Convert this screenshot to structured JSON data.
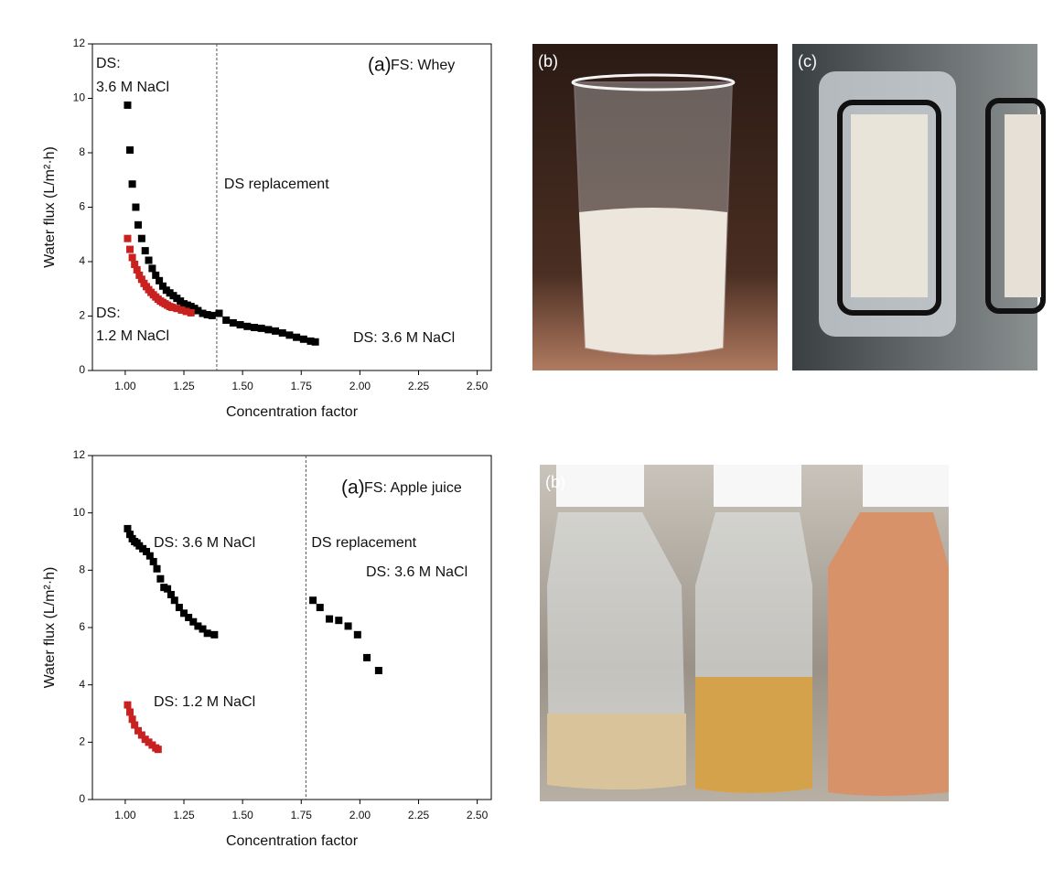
{
  "chart_data": [
    {
      "type": "scatter",
      "panel_label": "(a)",
      "subtitle": "FS: Whey",
      "x_label": "Concentration factor",
      "y_label": "Water flux (L/m²·h)",
      "xlim": [
        0.86,
        2.56
      ],
      "ylim": [
        0,
        12
      ],
      "xticks": [
        {
          "value": 1,
          "label": "1.00"
        },
        {
          "value": 1.25,
          "label": "1.25"
        },
        {
          "value": 1.5,
          "label": "1.50"
        },
        {
          "value": 1.75,
          "label": "1.75"
        },
        {
          "value": 2,
          "label": "2.00"
        },
        {
          "value": 2.25,
          "label": "2.25"
        },
        {
          "value": 2.5,
          "label": "2.50"
        }
      ],
      "yticks": [
        0,
        2,
        4,
        6,
        8,
        10,
        12
      ],
      "vlines": [
        {
          "value": 1.39,
          "label": "DS replacement"
        }
      ],
      "annotations": [
        "DS:",
        "3.6 M NaCl",
        "DS:",
        "1.2 M NaCl",
        "DS: 3.6 M NaCl"
      ],
      "series": [
        {
          "color": "#000000",
          "x": [
            1.01,
            1.02,
            1.03,
            1.045,
            1.055,
            1.07,
            1.085,
            1.1,
            1.115,
            1.13,
            1.145,
            1.16,
            1.175,
            1.19,
            1.205,
            1.22,
            1.235,
            1.25,
            1.265,
            1.28,
            1.295,
            1.31,
            1.33,
            1.35,
            1.37
          ],
          "values": [
            9.75,
            8.1,
            6.85,
            6.0,
            5.35,
            4.85,
            4.4,
            4.05,
            3.75,
            3.5,
            3.3,
            3.1,
            2.95,
            2.85,
            2.75,
            2.65,
            2.55,
            2.45,
            2.4,
            2.35,
            2.28,
            2.2,
            2.1,
            2.05,
            2.02
          ]
        },
        {
          "color": "#c8211f",
          "x": [
            1.01,
            1.02,
            1.03,
            1.04,
            1.05,
            1.06,
            1.07,
            1.08,
            1.09,
            1.1,
            1.11,
            1.12,
            1.13,
            1.14,
            1.15,
            1.16,
            1.17,
            1.18,
            1.19,
            1.2,
            1.22,
            1.24,
            1.26,
            1.28
          ],
          "values": [
            4.85,
            4.45,
            4.15,
            3.9,
            3.7,
            3.5,
            3.35,
            3.2,
            3.08,
            2.97,
            2.87,
            2.78,
            2.7,
            2.62,
            2.55,
            2.5,
            2.45,
            2.4,
            2.35,
            2.32,
            2.28,
            2.22,
            2.17,
            2.12
          ]
        },
        {
          "color": "#000000",
          "x": [
            1.4,
            1.43,
            1.46,
            1.49,
            1.52,
            1.55,
            1.58,
            1.61,
            1.64,
            1.67,
            1.7,
            1.73,
            1.76,
            1.79,
            1.81
          ],
          "values": [
            2.1,
            1.85,
            1.75,
            1.68,
            1.62,
            1.58,
            1.55,
            1.5,
            1.45,
            1.38,
            1.3,
            1.22,
            1.15,
            1.08,
            1.05
          ]
        }
      ]
    },
    {
      "type": "scatter",
      "panel_label": "(a)",
      "subtitle": "FS: Apple juice",
      "x_label": "Concentration factor",
      "y_label": "Water flux (L/m²·h)",
      "xlim": [
        0.86,
        2.56
      ],
      "ylim": [
        0,
        12
      ],
      "xticks": [
        {
          "value": 1,
          "label": "1.00"
        },
        {
          "value": 1.25,
          "label": "1.25"
        },
        {
          "value": 1.5,
          "label": "1.50"
        },
        {
          "value": 1.75,
          "label": "1.75"
        },
        {
          "value": 2,
          "label": "2.00"
        },
        {
          "value": 2.25,
          "label": "2.25"
        },
        {
          "value": 2.5,
          "label": "2.50"
        }
      ],
      "yticks": [
        0,
        2,
        4,
        6,
        8,
        10,
        12
      ],
      "vlines": [
        {
          "value": 1.77,
          "label": "DS replacement"
        }
      ],
      "annotations": [
        "DS: 3.6 M NaCl",
        "DS: 1.2 M NaCl",
        "DS: 3.6 M NaCl"
      ],
      "series": [
        {
          "color": "#000000",
          "x": [
            1.01,
            1.02,
            1.03,
            1.04,
            1.05,
            1.06,
            1.075,
            1.09,
            1.105,
            1.12,
            1.135,
            1.15,
            1.165,
            1.18,
            1.195,
            1.21,
            1.23,
            1.25,
            1.27,
            1.29,
            1.31,
            1.33,
            1.35,
            1.38
          ],
          "values": [
            9.45,
            9.25,
            9.1,
            9.0,
            8.95,
            8.85,
            8.75,
            8.65,
            8.5,
            8.3,
            8.05,
            7.7,
            7.4,
            7.35,
            7.15,
            6.95,
            6.7,
            6.5,
            6.35,
            6.2,
            6.05,
            5.95,
            5.8,
            5.75
          ]
        },
        {
          "color": "#c8211f",
          "x": [
            1.01,
            1.02,
            1.03,
            1.04,
            1.055,
            1.07,
            1.085,
            1.1,
            1.115,
            1.13,
            1.14
          ],
          "values": [
            3.3,
            3.05,
            2.8,
            2.6,
            2.4,
            2.25,
            2.1,
            2.0,
            1.9,
            1.8,
            1.75
          ]
        },
        {
          "color": "#000000",
          "x": [
            1.8,
            1.83,
            1.87,
            1.91,
            1.95,
            1.99,
            2.03,
            2.08
          ],
          "values": [
            6.95,
            6.7,
            6.3,
            6.25,
            6.05,
            5.75,
            4.95,
            4.5
          ]
        }
      ]
    }
  ],
  "photos": [
    {
      "label": "(b)"
    },
    {
      "label": "(c)"
    },
    {
      "label": "(b)"
    }
  ]
}
